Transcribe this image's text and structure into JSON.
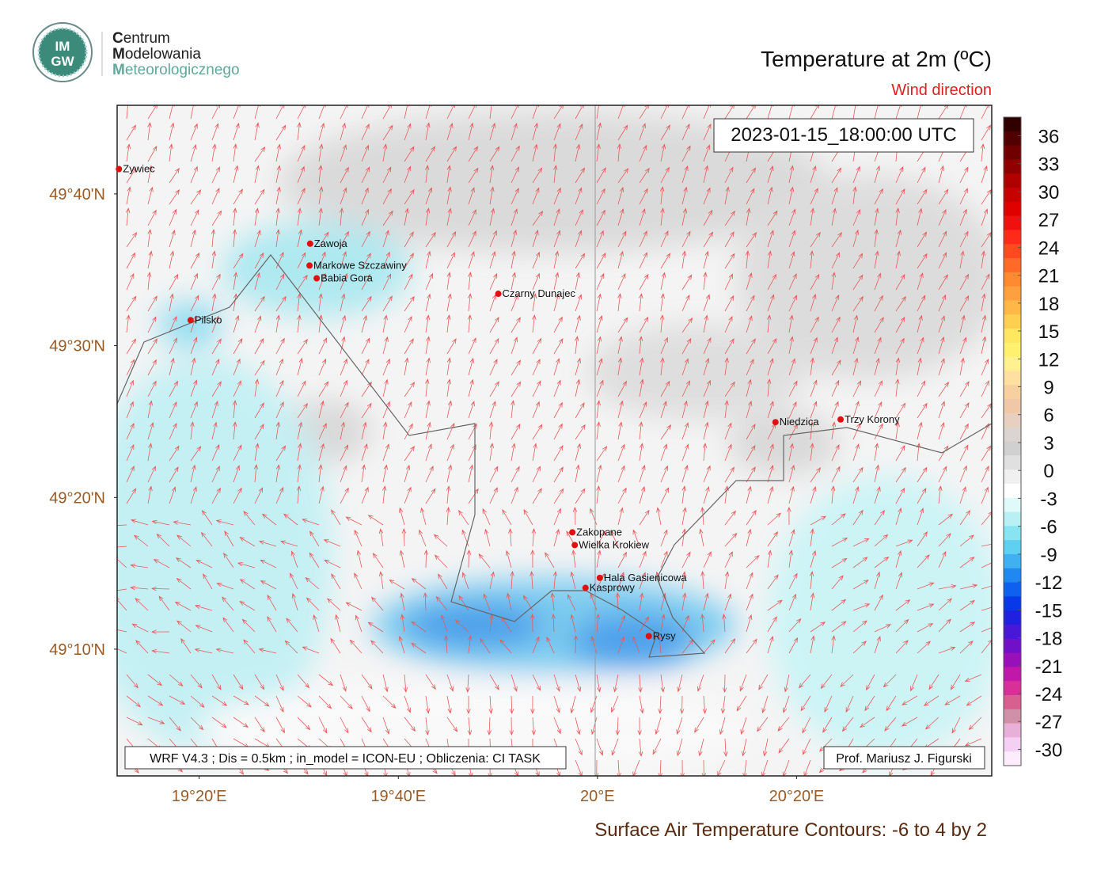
{
  "header": {
    "logo": [
      "IM",
      "GW"
    ],
    "institute": [
      "Centrum",
      "Modelowania",
      "Meteorologicznego"
    ],
    "title": "Temperature at 2m (ºC)",
    "subtitle": "Wind direction"
  },
  "map": {
    "lonlim": [
      19.196,
      20.66
    ],
    "latlim": [
      49.0275,
      49.764
    ],
    "lon_ticks": [
      {
        "value": 19.3333,
        "label": "19°20'E"
      },
      {
        "value": 19.6667,
        "label": "19°40'E"
      },
      {
        "value": 20,
        "label": "20°E"
      },
      {
        "value": 20.3333,
        "label": "20°20'E"
      }
    ],
    "lat_ticks": [
      {
        "value": 49.6667,
        "label": "49°40'N"
      },
      {
        "value": 49.5,
        "label": "49°30'N"
      },
      {
        "value": 49.3333,
        "label": "49°20'N"
      },
      {
        "value": 49.1667,
        "label": "49°10'N"
      }
    ],
    "timestamp": "2023-01-15_18:00:00 UTC",
    "places": [
      {
        "name": "Zywiec",
        "lon": 19.199,
        "lat": 49.694
      },
      {
        "name": "Zawoja",
        "lon": 19.519,
        "lat": 49.612
      },
      {
        "name": "Markowe Szczawiny",
        "lon": 19.518,
        "lat": 49.588
      },
      {
        "name": "Babia Gora",
        "lon": 19.53,
        "lat": 49.574
      },
      {
        "name": "Pilsko",
        "lon": 19.319,
        "lat": 49.528
      },
      {
        "name": "Czarny Dunajec",
        "lon": 19.834,
        "lat": 49.557
      },
      {
        "name": "Niedzica",
        "lon": 20.298,
        "lat": 49.416
      },
      {
        "name": "Trzy Korony",
        "lon": 20.407,
        "lat": 49.419
      },
      {
        "name": "Zakopane",
        "lon": 19.958,
        "lat": 49.295
      },
      {
        "name": "Wielka Krokiew",
        "lon": 19.962,
        "lat": 49.281
      },
      {
        "name": "Hala Gasienicowa",
        "lon": 20.004,
        "lat": 49.245
      },
      {
        "name": "Kasprowy",
        "lon": 19.98,
        "lat": 49.234
      },
      {
        "name": "Rysy",
        "lon": 20.086,
        "lat": 49.181
      }
    ],
    "model_note": "WRF V4.3 ; Dis = 0.5km ; in_model = ICON-EU ; Obliczenia: CI TASK",
    "author": "Prof. Mariusz J. Figurski"
  },
  "colorbar": {
    "range": [
      -31.75,
      38
    ],
    "ticks": [
      36,
      33,
      30,
      27,
      24,
      21,
      18,
      15,
      12,
      9,
      6,
      3,
      0,
      -3,
      -6,
      -9,
      -12,
      -15,
      -18,
      -21,
      -24,
      -27,
      -30
    ],
    "colors": [
      "#300000",
      "#500000",
      "#700000",
      "#900000",
      "#b00000",
      "#c80000",
      "#e00000",
      "#f01010",
      "#ff2a1a",
      "#ff4a20",
      "#ff6a28",
      "#ff8a30",
      "#ffa040",
      "#ffb848",
      "#ffd050",
      "#ffe860",
      "#fff070",
      "#fff090",
      "#ffe0a0",
      "#f8d0a0",
      "#f0c8a8",
      "#e8d0c0",
      "#dcd4d0",
      "#d0d0d0",
      "#e0e0e0",
      "#f0f0f0",
      "#ffffff",
      "#e0fafa",
      "#b8f0f4",
      "#88e4f0",
      "#60d0f0",
      "#40b0f0",
      "#2088f0",
      "#1060f0",
      "#0838e8",
      "#2020e0",
      "#4818d8",
      "#7010c8",
      "#9810b8",
      "#c018a8",
      "#d83098",
      "#d86090",
      "#d090a8",
      "#e8b0d8",
      "#f4d0f4",
      "#fcecfc"
    ]
  },
  "footer": {
    "contours": "Surface Air Temperature Contours: -6 to 4 by 2"
  }
}
